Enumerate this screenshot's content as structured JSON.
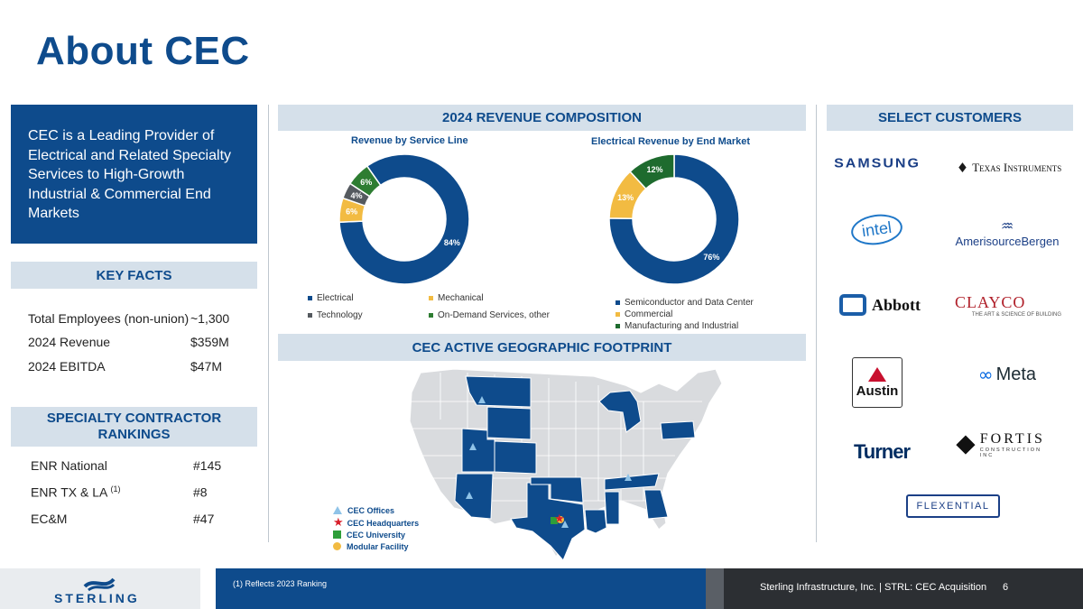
{
  "title": "About CEC",
  "intro": "CEC is a Leading Provider of Electrical and Related Specialty Services to High-Growth Industrial & Commercial End Markets",
  "key_facts": {
    "heading": "KEY FACTS",
    "rows": [
      {
        "label": "Total Employees (non-union)",
        "value": "~1,300"
      },
      {
        "label": "2024 Revenue",
        "value": "$359M"
      },
      {
        "label": "2024 EBITDA",
        "value": "$47M"
      }
    ]
  },
  "rankings": {
    "heading": "SPECIALTY CONTRACTOR RANKINGS",
    "rows": [
      {
        "label": "ENR National",
        "value": "#145"
      },
      {
        "label": "ENR TX & LA",
        "sup": "(1)",
        "value": "#8"
      },
      {
        "label": "EC&M",
        "value": "#47"
      }
    ]
  },
  "revenue_heading": "2024 REVENUE COMPOSITION",
  "chart_data": [
    {
      "type": "pie",
      "title": "Revenue by Service Line",
      "categories": [
        "Electrical",
        "Mechanical",
        "Technology",
        "On-Demand Services, other"
      ],
      "values": [
        84,
        6,
        4,
        6
      ],
      "labels": [
        "84%",
        "6%",
        "4%",
        "6%"
      ],
      "colors": [
        "#0e4b8c",
        "#f2bb42",
        "#555a5f",
        "#2e7d32"
      ]
    },
    {
      "type": "pie",
      "title": "Electrical Revenue by End Market",
      "categories": [
        "Semiconductor and Data Center",
        "Commercial",
        "Manufacturing and Industrial"
      ],
      "values": [
        76,
        13,
        12
      ],
      "labels": [
        "76%",
        "13%",
        "12%"
      ],
      "colors": [
        "#0e4b8c",
        "#f2bb42",
        "#1e6b2e"
      ]
    }
  ],
  "geo_heading": "CEC ACTIVE GEOGRAPHIC FOOTPRINT",
  "map_legend": [
    "CEC Offices",
    "CEC Headquarters",
    "CEC University",
    "Modular Facility"
  ],
  "customers_heading": "SELECT CUSTOMERS",
  "customers": {
    "samsung": "SAMSUNG",
    "ti": "Texas Instruments",
    "intel": "intel",
    "amerisource": "AmerisourceBergen",
    "abbott": "Abbott",
    "clayco": "CLAYCO",
    "clayco_tag": "THE ART & SCIENCE OF BUILDING",
    "austin": "Austin",
    "meta": "Meta",
    "turner": "Turner",
    "fortis": "FORTIS",
    "fortis_tag": "CONSTRUCTION INC",
    "flexential": "FLEXENTIAL"
  },
  "footer": {
    "brand": "STERLING",
    "footnote": "(1)  Reflects 2023 Ranking",
    "text": "Sterling Infrastructure, Inc. | STRL:  CEC Acquisition",
    "page": "6"
  },
  "colors": {
    "navy": "#0e4b8c",
    "gold": "#f2bb42",
    "green": "#2e7d32",
    "gray": "#555a5f"
  }
}
